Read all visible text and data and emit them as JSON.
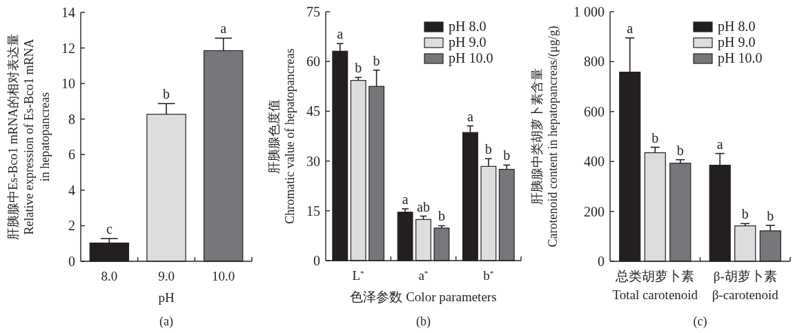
{
  "chart_data": [
    {
      "type": "bar",
      "title": "(a)",
      "xlabel": "pH",
      "ylabel": "肝胰腺中Es-Bco1 mRNA的相对表达量\nRelative expression of Es-Bco1 mRNA\nin hepatopancreas",
      "categories": [
        "8.0",
        "9.0",
        "10.0"
      ],
      "values": [
        1.03,
        8.27,
        11.85
      ],
      "errors": [
        0.25,
        0.6,
        0.7
      ],
      "value_labels": [
        "c",
        "b",
        "a"
      ],
      "colors": [
        "#231f20",
        "#dcdddf",
        "#76777b"
      ],
      "ylim": [
        0,
        14
      ],
      "yticks": [
        0,
        2,
        4,
        6,
        8,
        10,
        12,
        14
      ]
    },
    {
      "type": "bar",
      "title": "(b)",
      "xlabel": "色泽参数 Color parameters",
      "ylabel": "肝胰腺色度值\nChromatic value of hepatopancreas",
      "categories": [
        "L$^{*}$",
        "a$^{*}$",
        "b$^{*}$"
      ],
      "series": [
        {
          "name": "pH 8.0",
          "color": "#231f20",
          "values": [
            63.1,
            14.6,
            38.6
          ],
          "errors": [
            2.3,
            1.0,
            2.0
          ],
          "value_labels": [
            "a",
            "a",
            "a"
          ]
        },
        {
          "name": "pH 9.0",
          "color": "#dcdddf",
          "values": [
            54.3,
            12.4,
            28.4
          ],
          "errors": [
            0.9,
            1.0,
            2.3
          ],
          "value_labels": [
            "b",
            "ab",
            "b"
          ]
        },
        {
          "name": "pH 10.0",
          "color": "#76777b",
          "values": [
            52.5,
            9.8,
            27.5
          ],
          "errors": [
            4.9,
            0.7,
            1.3
          ],
          "value_labels": [
            "b",
            "b",
            "b"
          ]
        }
      ],
      "ylim": [
        0,
        75
      ],
      "yticks": [
        0,
        15,
        30,
        45,
        60,
        75
      ],
      "legend": "top right"
    },
    {
      "type": "bar",
      "title": "(c)",
      "ylabel": "肝胰腺中类胡萝卜素含量\nCarotenoid content in hepatopancreas/(μg/g)",
      "categories": [
        "总类胡萝卜素\nTotal carotenoid",
        "β-胡萝卜素\nβ-carotenoid"
      ],
      "series": [
        {
          "name": "pH 8.0",
          "color": "#231f20",
          "values": [
            758,
            385
          ],
          "errors": [
            137,
            47
          ],
          "value_labels": [
            "a",
            "a"
          ]
        },
        {
          "name": "pH 9.0",
          "color": "#dcdddf",
          "values": [
            435,
            142
          ],
          "errors": [
            22,
            9
          ],
          "value_labels": [
            "b",
            "b"
          ]
        },
        {
          "name": "pH 10.0",
          "color": "#76777b",
          "values": [
            393,
            122
          ],
          "errors": [
            14,
            22
          ],
          "value_labels": [
            "b",
            "b"
          ]
        }
      ],
      "ylim": [
        0,
        1000
      ],
      "yticks": [
        0,
        200,
        400,
        600,
        800,
        {
          "value": 1000,
          "label": "1 000"
        }
      ],
      "legend": "top right"
    }
  ]
}
